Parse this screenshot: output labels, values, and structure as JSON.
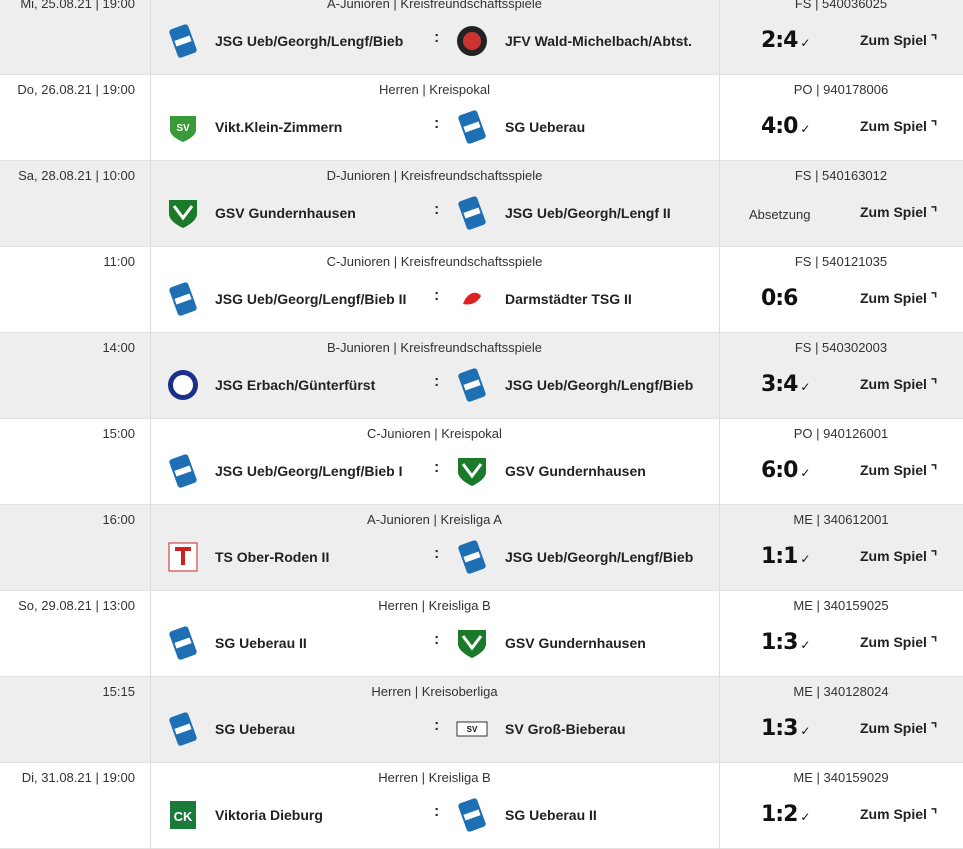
{
  "matches": [
    {
      "date": "Mi, 25.08.21 | 19:00",
      "category": "A-Junioren | Kreisfreundschaftsspiele",
      "home": "JSG Ueb/Georgh/Lengf/Bieb",
      "away": "JFV Wald-Michelbach/Abtst.",
      "code": "FS | 540036025",
      "score": "2:4",
      "status": "",
      "hl": "sg",
      "al": "jfv"
    },
    {
      "date": "Do, 26.08.21 | 19:00",
      "category": "Herren | Kreispokal",
      "home": "Vikt.Klein-Zimmern",
      "away": "SG Ueberau",
      "code": "PO | 940178006",
      "score": "4:0",
      "status": "",
      "hl": "svk",
      "al": "sg"
    },
    {
      "date": "Sa, 28.08.21 | 10:00",
      "category": "D-Junioren | Kreisfreundschaftsspiele",
      "home": "GSV Gundernhausen",
      "away": "JSG Ueb/Georgh/Lengf II",
      "code": "FS | 540163012",
      "score": "",
      "status": "Absetzung",
      "hl": "gsv",
      "al": "sg"
    },
    {
      "date": "11:00",
      "category": "C-Junioren | Kreisfreundschaftsspiele",
      "home": "JSG Ueb/Georg/Lengf/Bieb II",
      "away": "Darmstädter TSG II",
      "code": "FS | 540121035",
      "score": "0:6",
      "status": "",
      "hl": "sg",
      "al": "tsg",
      "nocheck": true
    },
    {
      "date": "14:00",
      "category": "B-Junioren | Kreisfreundschaftsspiele",
      "home": "JSG Erbach/Günterfürst",
      "away": "JSG Ueb/Georgh/Lengf/Bieb",
      "code": "FS | 540302003",
      "score": "3:4",
      "status": "",
      "hl": "fsv",
      "al": "sg"
    },
    {
      "date": "15:00",
      "category": "C-Junioren | Kreispokal",
      "home": "JSG Ueb/Georg/Lengf/Bieb I",
      "away": "GSV Gundernhausen",
      "code": "PO | 940126001",
      "score": "6:0",
      "status": "",
      "hl": "sg",
      "al": "gsv"
    },
    {
      "date": "16:00",
      "category": "A-Junioren | Kreisliga A",
      "home": "TS Ober-Roden II",
      "away": "JSG Ueb/Georgh/Lengf/Bieb",
      "code": "ME | 340612001",
      "score": "1:1",
      "status": "",
      "hl": "ts",
      "al": "sg"
    },
    {
      "date": "So, 29.08.21 | 13:00",
      "category": "Herren | Kreisliga B",
      "home": "SG Ueberau II",
      "away": "GSV Gundernhausen",
      "code": "ME | 340159025",
      "score": "1:3",
      "status": "",
      "hl": "sg",
      "al": "gsv"
    },
    {
      "date": "15:15",
      "category": "Herren | Kreisoberliga",
      "home": "SG Ueberau",
      "away": "SV Groß-Bieberau",
      "code": "ME | 340128024",
      "score": "1:3",
      "status": "",
      "hl": "sg",
      "al": "svgb"
    },
    {
      "date": "Di, 31.08.21 | 19:00",
      "category": "Herren | Kreisliga B",
      "home": "Viktoria Dieburg",
      "away": "SG Ueberau II",
      "code": "ME | 340159029",
      "score": "1:2",
      "status": "",
      "hl": "vd",
      "al": "sg"
    }
  ],
  "link_label": "Zum Spiel ⌝",
  "colon": ":",
  "check": "✓"
}
